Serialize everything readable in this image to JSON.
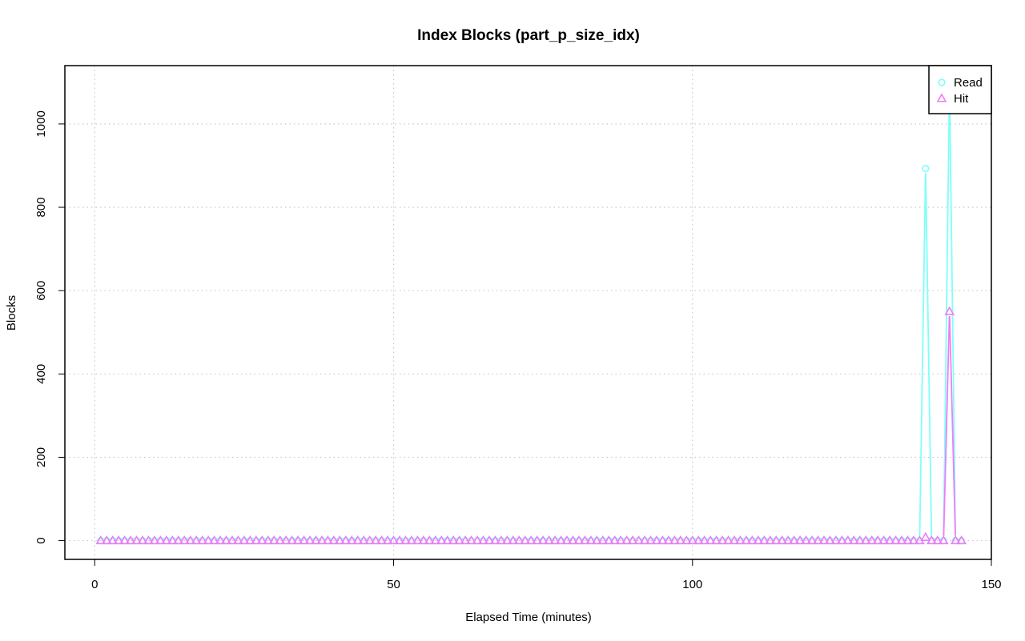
{
  "chart_data": {
    "type": "line",
    "title": "Index Blocks (part_p_size_idx)",
    "xlabel": "Elapsed Time (minutes)",
    "ylabel": "Blocks",
    "xlim": [
      -5,
      150
    ],
    "ylim": [
      -45,
      1140
    ],
    "xticks": [
      0,
      50,
      100,
      150
    ],
    "yticks": [
      0,
      200,
      400,
      600,
      800,
      1000
    ],
    "grid": true,
    "legend_position": "top-right",
    "series": [
      {
        "name": "Read",
        "color": "#7ffffa",
        "marker": "circle",
        "base": 0,
        "x_range": [
          1,
          145
        ],
        "spikes": [
          [
            139,
            893
          ],
          [
            143,
            1098
          ]
        ]
      },
      {
        "name": "Hit",
        "color": "#f07cf7",
        "marker": "triangle",
        "base": 0,
        "x_range": [
          1,
          145
        ],
        "spikes": [
          [
            139,
            8
          ],
          [
            143,
            550
          ]
        ]
      }
    ]
  }
}
